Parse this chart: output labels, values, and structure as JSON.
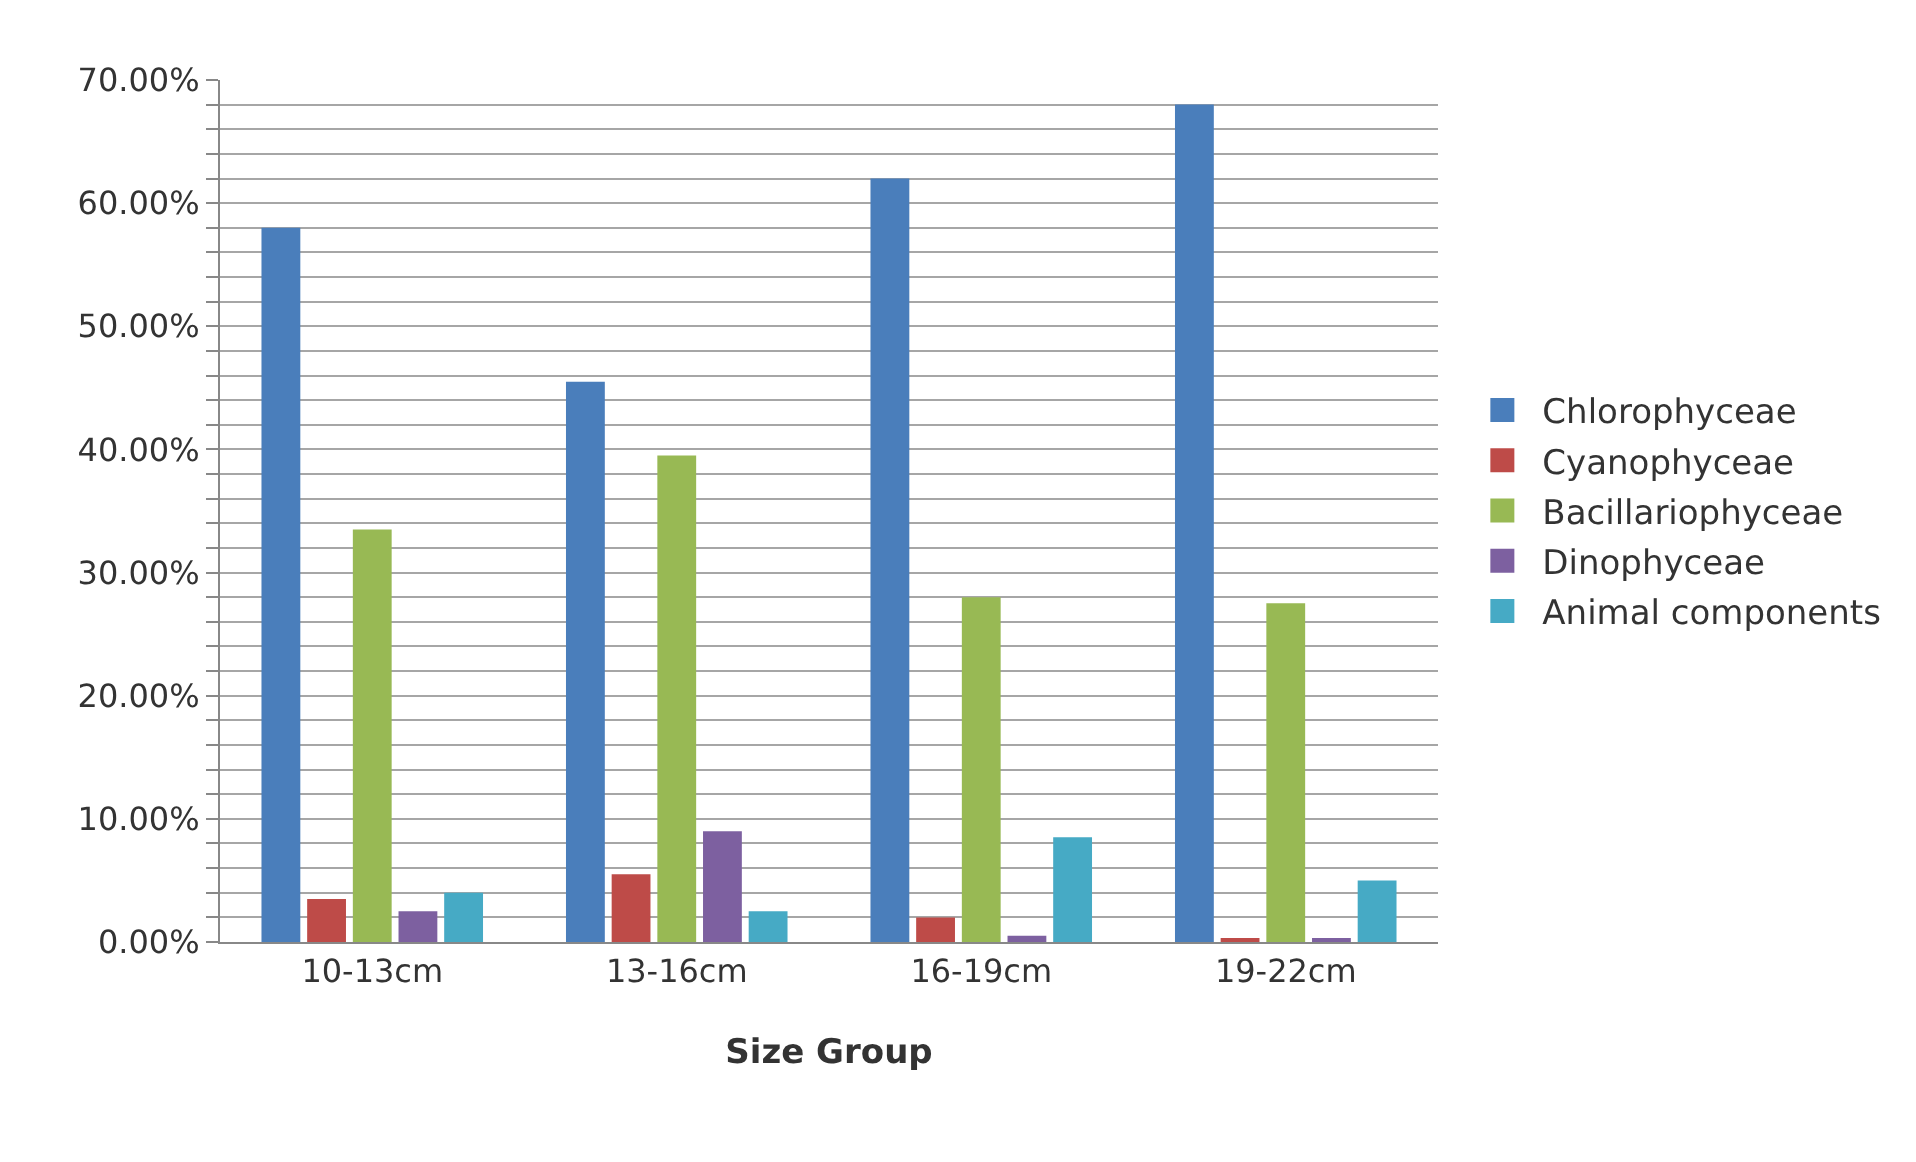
{
  "chart_data": {
    "type": "bar",
    "xlabel": "Size Group",
    "categories": [
      "10-13cm",
      "13-16cm",
      "16-19cm",
      "19-22cm"
    ],
    "series": [
      {
        "name": "Chlorophyceae",
        "color": "#4a7ebb",
        "values": [
          58,
          45.5,
          62,
          68
        ]
      },
      {
        "name": "Cyanophyceae",
        "color": "#be4b48",
        "values": [
          3.5,
          5.5,
          2,
          0.2
        ]
      },
      {
        "name": "Bacillariophyceae",
        "color": "#98b954",
        "values": [
          33.5,
          39.5,
          28,
          27.5
        ]
      },
      {
        "name": "Dinophyceae",
        "color": "#7d60a0",
        "values": [
          2.5,
          9,
          0.5,
          0.2
        ]
      },
      {
        "name": "Animal components",
        "color": "#46aac5",
        "values": [
          4,
          2.5,
          8.5,
          5
        ]
      }
    ],
    "ylim": [
      0,
      70
    ],
    "yticks": [
      {
        "value": 0,
        "label": "0.00%"
      },
      {
        "value": 2,
        "label": null
      },
      {
        "value": 4,
        "label": null
      },
      {
        "value": 6,
        "label": null
      },
      {
        "value": 8,
        "label": null
      },
      {
        "value": 10,
        "label": "10.00%"
      },
      {
        "value": 12,
        "label": null
      },
      {
        "value": 14,
        "label": null
      },
      {
        "value": 16,
        "label": null
      },
      {
        "value": 18,
        "label": null
      },
      {
        "value": 20,
        "label": "20.00%"
      },
      {
        "value": 22,
        "label": null
      },
      {
        "value": 24,
        "label": null
      },
      {
        "value": 26,
        "label": null
      },
      {
        "value": 28,
        "label": null
      },
      {
        "value": 30,
        "label": "30.00%"
      },
      {
        "value": 32,
        "label": null
      },
      {
        "value": 34,
        "label": null
      },
      {
        "value": 36,
        "label": null
      },
      {
        "value": 38,
        "label": null
      },
      {
        "value": 40,
        "label": "40.00%"
      },
      {
        "value": 42,
        "label": null
      },
      {
        "value": 44,
        "label": null
      },
      {
        "value": 46,
        "label": null
      },
      {
        "value": 48,
        "label": null
      },
      {
        "value": 50,
        "label": "50.00%"
      },
      {
        "value": 52,
        "label": null
      },
      {
        "value": 54,
        "label": null
      },
      {
        "value": 56,
        "label": null
      },
      {
        "value": 58,
        "label": null
      },
      {
        "value": 60,
        "label": "60.00%"
      },
      {
        "value": 62,
        "label": null
      },
      {
        "value": 64,
        "label": null
      },
      {
        "value": 66,
        "label": null
      },
      {
        "value": 68,
        "label": null
      },
      {
        "value": 70,
        "label": "70.00%"
      }
    ],
    "grid": "y",
    "legend": "right"
  }
}
